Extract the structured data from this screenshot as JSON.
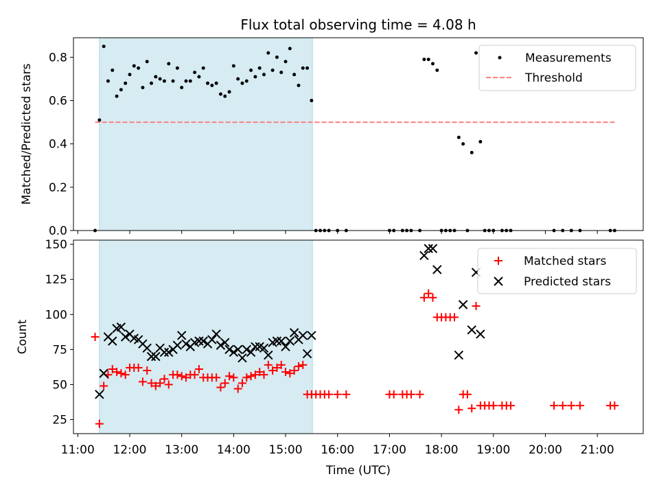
{
  "chart_data": [
    {
      "type": "scatter",
      "title": "Flux total observing time = 4.08 h",
      "xlabel": "",
      "ylabel": "Matched/Predicted stars",
      "ylim": [
        0,
        0.89
      ],
      "yticks": [
        "0.0",
        "0.2",
        "0.4",
        "0.6",
        "0.8"
      ],
      "ytick_values": [
        0,
        0.2,
        0.4,
        0.6,
        0.8
      ],
      "shaded_range": [
        "11:25",
        "15:31"
      ],
      "shaded_color": "#add8e6",
      "legend": {
        "placement": "top-right",
        "entries": [
          "Measurements",
          "Threshold"
        ]
      },
      "series": [
        {
          "name": "Measurements",
          "color": "#000000",
          "marker": "dot",
          "x": [
            "11:20",
            "11:25",
            "11:30",
            "11:35",
            "11:40",
            "11:45",
            "11:50",
            "11:55",
            "12:00",
            "12:05",
            "12:10",
            "12:15",
            "12:20",
            "12:25",
            "12:30",
            "12:35",
            "12:40",
            "12:45",
            "12:50",
            "12:55",
            "13:00",
            "13:05",
            "13:10",
            "13:15",
            "13:20",
            "13:25",
            "13:30",
            "13:35",
            "13:40",
            "13:45",
            "13:50",
            "13:55",
            "14:00",
            "14:05",
            "14:10",
            "14:15",
            "14:20",
            "14:25",
            "14:30",
            "14:35",
            "14:40",
            "14:45",
            "14:50",
            "14:55",
            "15:00",
            "15:05",
            "15:10",
            "15:15",
            "15:20",
            "15:25",
            "15:30",
            "15:35",
            "15:40",
            "15:45",
            "15:50",
            "16:00",
            "16:10",
            "17:00",
            "17:05",
            "17:15",
            "17:20",
            "17:25",
            "17:35",
            "17:40",
            "17:45",
            "17:50",
            "17:55",
            "18:00",
            "18:05",
            "18:10",
            "18:15",
            "18:20",
            "18:25",
            "18:30",
            "18:35",
            "18:40",
            "18:45",
            "18:50",
            "18:55",
            "19:00",
            "19:10",
            "19:15",
            "19:20",
            "20:10",
            "20:20",
            "20:30",
            "20:40",
            "21:15",
            "21:20"
          ],
          "y": [
            0.0,
            0.51,
            0.85,
            0.69,
            0.74,
            0.62,
            0.65,
            0.68,
            0.72,
            0.76,
            0.75,
            0.66,
            0.78,
            0.68,
            0.71,
            0.7,
            0.69,
            0.77,
            0.69,
            0.75,
            0.66,
            0.69,
            0.69,
            0.73,
            0.71,
            0.75,
            0.68,
            0.67,
            0.68,
            0.63,
            0.62,
            0.64,
            0.76,
            0.7,
            0.68,
            0.69,
            0.74,
            0.71,
            0.75,
            0.72,
            0.82,
            0.74,
            0.8,
            0.73,
            0.78,
            0.84,
            0.72,
            0.67,
            0.75,
            0.75,
            0.6,
            0.0,
            0.0,
            0.0,
            0.0,
            0.0,
            0.0,
            0.0,
            0.0,
            0.0,
            0.0,
            0.0,
            0.0,
            0.79,
            0.79,
            0.77,
            0.74,
            0.0,
            0.0,
            0.0,
            0.0,
            0.43,
            0.4,
            0.0,
            0.36,
            0.82,
            0.41,
            0.0,
            0.0,
            0.0,
            0.0,
            0.0,
            0.0,
            0.0,
            0.0,
            0.0,
            0.0,
            0.0,
            0.0
          ]
        },
        {
          "name": "Threshold",
          "color": "#ff7f7f",
          "style": "dashed",
          "x": [
            "11:20",
            "21:20"
          ],
          "y": [
            0.5,
            0.5
          ]
        }
      ]
    },
    {
      "type": "scatter",
      "xlabel": "Time (UTC)",
      "ylabel": "Count",
      "ylim": [
        15,
        153
      ],
      "yticks": [
        "25",
        "50",
        "75",
        "100",
        "125",
        "150"
      ],
      "ytick_values": [
        25,
        50,
        75,
        100,
        125,
        150
      ],
      "xlim": [
        "10:55",
        "21:53"
      ],
      "xticks": [
        "11:00",
        "12:00",
        "13:00",
        "14:00",
        "15:00",
        "16:00",
        "17:00",
        "18:00",
        "19:00",
        "20:00",
        "21:00"
      ],
      "shaded_range": [
        "11:25",
        "15:31"
      ],
      "shaded_color": "#add8e6",
      "legend": {
        "placement": "top-right",
        "entries": [
          "Matched stars",
          "Predicted stars"
        ]
      },
      "series": [
        {
          "name": "Matched stars",
          "color": "#ff0000",
          "marker": "plus",
          "x": [
            "11:20",
            "11:25",
            "11:30",
            "11:35",
            "11:40",
            "11:45",
            "11:50",
            "11:55",
            "12:00",
            "12:05",
            "12:10",
            "12:15",
            "12:20",
            "12:25",
            "12:30",
            "12:35",
            "12:40",
            "12:45",
            "12:50",
            "12:55",
            "13:00",
            "13:05",
            "13:10",
            "13:15",
            "13:20",
            "13:25",
            "13:30",
            "13:35",
            "13:40",
            "13:45",
            "13:50",
            "13:55",
            "14:00",
            "14:05",
            "14:10",
            "14:15",
            "14:20",
            "14:25",
            "14:30",
            "14:35",
            "14:40",
            "14:45",
            "14:50",
            "14:55",
            "15:00",
            "15:05",
            "15:10",
            "15:15",
            "15:20",
            "15:25",
            "15:30",
            "15:35",
            "15:40",
            "15:45",
            "15:50",
            "16:00",
            "16:10",
            "17:00",
            "17:05",
            "17:15",
            "17:20",
            "17:25",
            "17:35",
            "17:40",
            "17:45",
            "17:50",
            "17:55",
            "18:00",
            "18:05",
            "18:10",
            "18:15",
            "18:20",
            "18:25",
            "18:30",
            "18:35",
            "18:40",
            "18:45",
            "18:50",
            "18:55",
            "19:00",
            "19:10",
            "19:15",
            "19:20",
            "20:10",
            "20:20",
            "20:30",
            "20:40",
            "21:15",
            "21:20"
          ],
          "y": [
            84,
            22,
            49,
            57,
            61,
            59,
            58,
            57,
            62,
            62,
            62,
            52,
            60,
            51,
            49,
            51,
            54,
            50,
            57,
            57,
            56,
            55,
            57,
            57,
            61,
            55,
            55,
            55,
            55,
            48,
            51,
            56,
            55,
            47,
            51,
            55,
            56,
            57,
            59,
            57,
            64,
            60,
            62,
            64,
            59,
            58,
            60,
            63,
            64,
            43,
            43,
            43,
            43,
            43,
            43,
            43,
            43,
            43,
            43,
            43,
            43,
            43,
            43,
            112,
            115,
            112,
            98,
            98,
            98,
            98,
            98,
            32,
            43,
            43,
            33,
            106,
            35,
            35,
            35,
            35,
            35,
            35,
            35,
            35,
            35,
            35,
            35,
            35,
            35
          ]
        },
        {
          "name": "Predicted stars",
          "color": "#000000",
          "marker": "x",
          "x": [
            "11:25",
            "11:30",
            "11:35",
            "11:40",
            "11:45",
            "11:50",
            "11:55",
            "12:00",
            "12:05",
            "12:10",
            "12:15",
            "12:20",
            "12:25",
            "12:30",
            "12:35",
            "12:40",
            "12:45",
            "12:50",
            "12:55",
            "13:00",
            "13:05",
            "13:10",
            "13:15",
            "13:20",
            "13:25",
            "13:30",
            "13:35",
            "13:40",
            "13:45",
            "13:50",
            "13:55",
            "14:00",
            "14:05",
            "14:10",
            "14:15",
            "14:20",
            "14:25",
            "14:30",
            "14:35",
            "14:40",
            "14:45",
            "14:50",
            "14:55",
            "15:00",
            "15:05",
            "15:10",
            "15:15",
            "15:20",
            "15:25",
            "15:30",
            "17:40",
            "17:45",
            "17:50",
            "17:55",
            "18:20",
            "18:25",
            "18:35",
            "18:40",
            "18:45"
          ],
          "y": [
            43,
            58,
            84,
            81,
            90,
            91,
            84,
            86,
            83,
            82,
            79,
            76,
            70,
            70,
            76,
            73,
            73,
            75,
            78,
            85,
            79,
            77,
            80,
            81,
            81,
            79,
            82,
            86,
            78,
            80,
            75,
            73,
            75,
            69,
            75,
            73,
            77,
            77,
            76,
            71,
            80,
            81,
            81,
            77,
            81,
            87,
            82,
            85,
            72,
            85,
            142,
            147,
            147,
            132,
            71,
            107,
            89,
            130,
            86
          ]
        }
      ]
    }
  ]
}
